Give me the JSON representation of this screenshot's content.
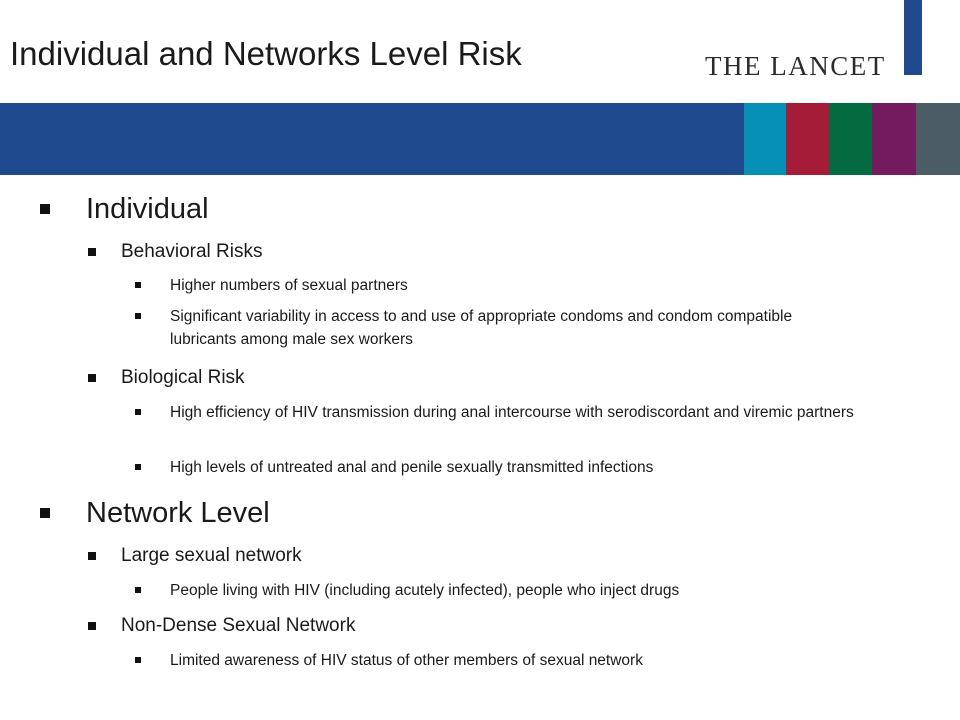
{
  "slide": {
    "title": "Individual and Networks Level Risk",
    "logo_text": "THE LANCET"
  },
  "colors": {
    "band_main": "#1f4a8e",
    "top_accent": "#1f4a8e",
    "swatches": [
      "#0790b5",
      "#a51c38",
      "#036b3f",
      "#741b5f",
      "#4b5c65"
    ]
  },
  "content": {
    "individual": {
      "label": "Individual",
      "behavioral": {
        "label": "Behavioral Risks",
        "items": [
          "Higher numbers of sexual partners",
          "Significant variability in access to and use of appropriate condoms and condom compatible lubricants among male sex workers"
        ]
      },
      "biological": {
        "label": "Biological Risk",
        "items": [
          "High efficiency of HIV transmission during anal intercourse with serodiscordant and viremic partners",
          "High levels of untreated anal and penile sexually transmitted infections"
        ]
      }
    },
    "network": {
      "label": "Network Level",
      "large": {
        "label": "Large sexual network",
        "items": [
          "People living with HIV (including acutely infected), people who inject drugs"
        ]
      },
      "non_dense": {
        "label": "Non-Dense Sexual Network",
        "items": [
          "Limited awareness of HIV status of other members of sexual network"
        ]
      }
    }
  }
}
